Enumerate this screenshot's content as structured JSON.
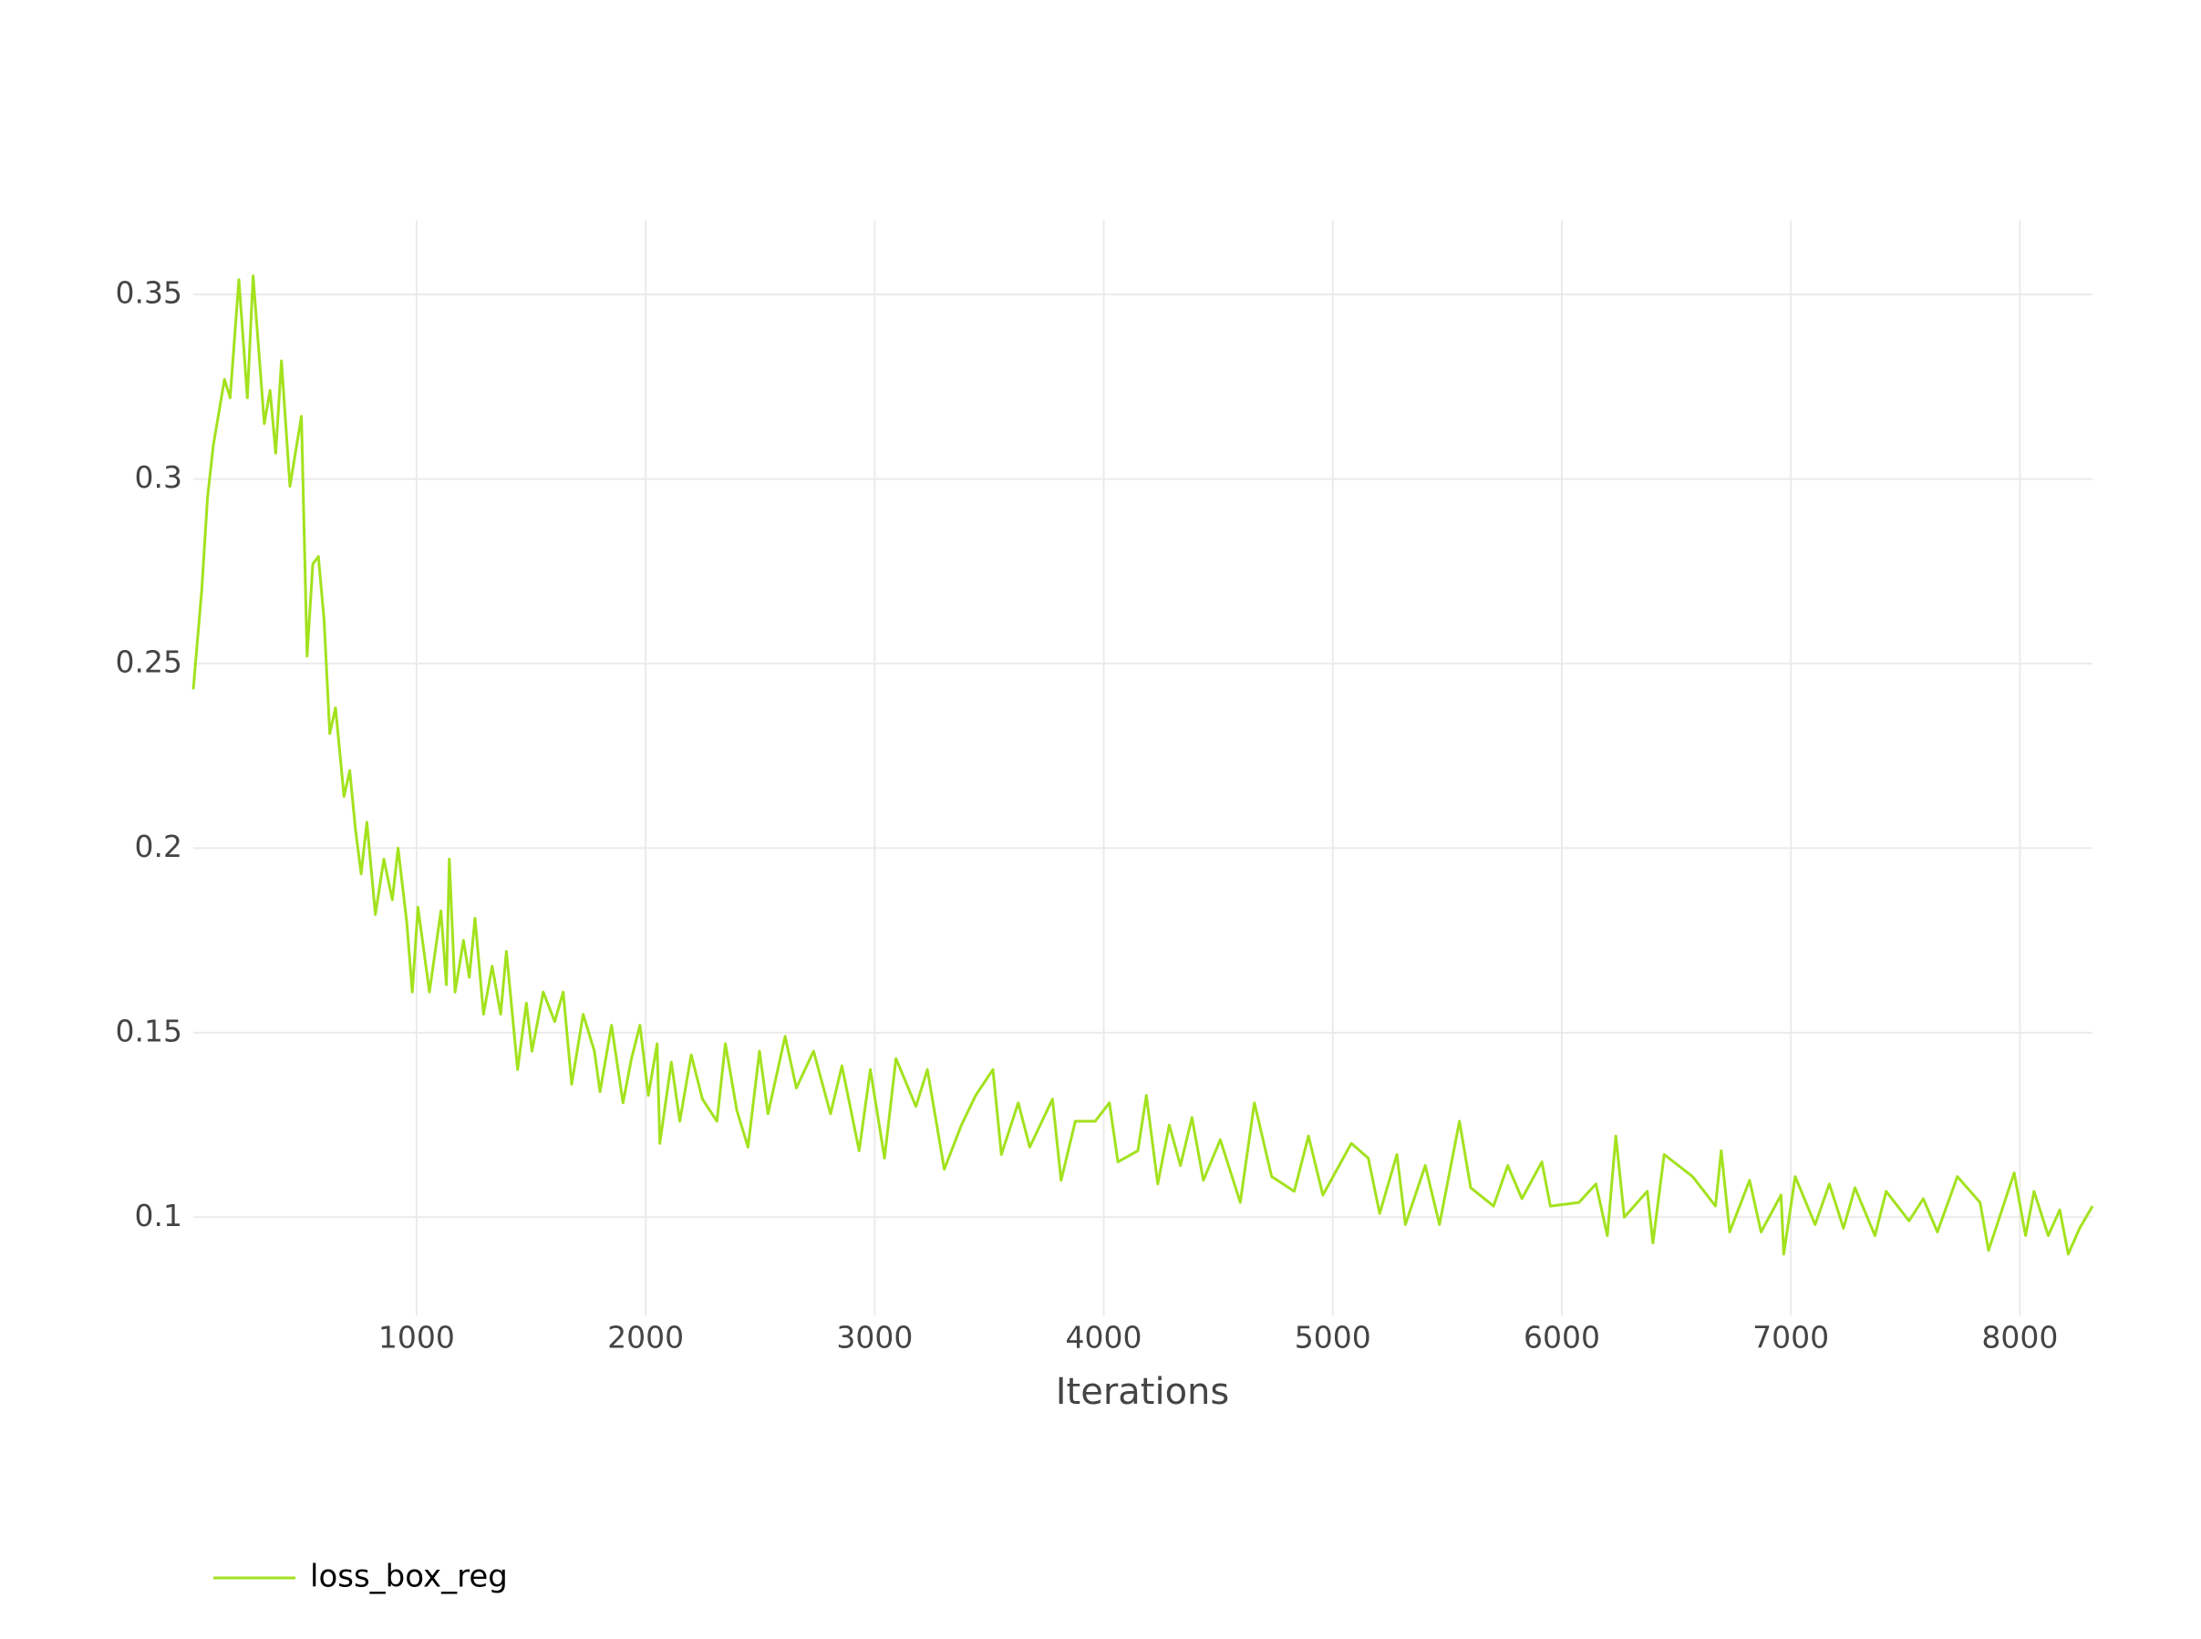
{
  "chart_data": {
    "type": "line",
    "x_label": "Iterations",
    "x": [
      25,
      62,
      87,
      112,
      161,
      186,
      224,
      261,
      286,
      335,
      360,
      385,
      410,
      447,
      497,
      522,
      547,
      571,
      596,
      621,
      646,
      683,
      708,
      733,
      758,
      783,
      820,
      857,
      894,
      919,
      957,
      981,
      1006,
      1056,
      1106,
      1130,
      1143,
      1168,
      1205,
      1230,
      1255,
      1292,
      1330,
      1367,
      1392,
      1441,
      1479,
      1504,
      1553,
      1603,
      1640,
      1677,
      1727,
      1776,
      1801,
      1851,
      1901,
      1938,
      1975,
      2012,
      2050,
      2062,
      2112,
      2149,
      2199,
      2248,
      2311,
      2348,
      2398,
      2447,
      2497,
      2534,
      2609,
      2658,
      2733,
      2807,
      2857,
      2932,
      2981,
      3043,
      3093,
      3180,
      3230,
      3304,
      3379,
      3441,
      3516,
      3553,
      3627,
      3677,
      3776,
      3814,
      3876,
      3963,
      4025,
      4062,
      4149,
      4186,
      4236,
      4286,
      4335,
      4385,
      4435,
      4509,
      4596,
      4658,
      4733,
      4832,
      4894,
      4957,
      5081,
      5155,
      5205,
      5280,
      5317,
      5404,
      5466,
      5553,
      5602,
      5702,
      5764,
      5826,
      5913,
      5950,
      6075,
      6149,
      6199,
      6236,
      6273,
      6373,
      6398,
      6447,
      6571,
      6671,
      6696,
      6733,
      6820,
      6870,
      6957,
      6969,
      7019,
      7106,
      7168,
      7230,
      7280,
      7367,
      7416,
      7516,
      7578,
      7640,
      7727,
      7826,
      7863,
      7975,
      8025,
      8062,
      8124,
      8174,
      8211,
      8261,
      8317
    ],
    "series": [
      {
        "name": "loss_box_reg",
        "color": "#a3e21e",
        "values": [
          0.243,
          0.27,
          0.295,
          0.309,
          0.327,
          0.322,
          0.354,
          0.322,
          0.355,
          0.315,
          0.324,
          0.307,
          0.332,
          0.298,
          0.317,
          0.252,
          0.277,
          0.279,
          0.262,
          0.231,
          0.238,
          0.214,
          0.221,
          0.205,
          0.193,
          0.207,
          0.182,
          0.197,
          0.186,
          0.2,
          0.18,
          0.161,
          0.184,
          0.161,
          0.183,
          0.163,
          0.197,
          0.161,
          0.175,
          0.165,
          0.181,
          0.155,
          0.168,
          0.155,
          0.172,
          0.14,
          0.158,
          0.145,
          0.161,
          0.153,
          0.161,
          0.136,
          0.155,
          0.145,
          0.134,
          0.152,
          0.131,
          0.143,
          0.152,
          0.133,
          0.147,
          0.12,
          0.142,
          0.126,
          0.144,
          0.132,
          0.126,
          0.147,
          0.129,
          0.119,
          0.145,
          0.128,
          0.149,
          0.135,
          0.145,
          0.128,
          0.141,
          0.118,
          0.14,
          0.116,
          0.143,
          0.13,
          0.14,
          0.113,
          0.125,
          0.133,
          0.14,
          0.117,
          0.131,
          0.119,
          0.132,
          0.11,
          0.126,
          0.126,
          0.131,
          0.115,
          0.118,
          0.133,
          0.109,
          0.125,
          0.114,
          0.127,
          0.11,
          0.121,
          0.104,
          0.131,
          0.111,
          0.107,
          0.122,
          0.106,
          0.12,
          0.116,
          0.101,
          0.117,
          0.098,
          0.114,
          0.098,
          0.126,
          0.108,
          0.103,
          0.114,
          0.105,
          0.115,
          0.103,
          0.104,
          0.109,
          0.095,
          0.122,
          0.1,
          0.107,
          0.093,
          0.117,
          0.111,
          0.103,
          0.118,
          0.096,
          0.11,
          0.096,
          0.106,
          0.09,
          0.111,
          0.098,
          0.109,
          0.097,
          0.108,
          0.095,
          0.107,
          0.099,
          0.105,
          0.096,
          0.111,
          0.104,
          0.091,
          0.112,
          0.095,
          0.107,
          0.095,
          0.102,
          0.09,
          0.097,
          0.103
        ]
      }
    ],
    "xlim": [
      25,
      8317
    ],
    "xticks": [
      1000,
      2000,
      3000,
      4000,
      5000,
      6000,
      7000,
      8000
    ],
    "ylim": [
      0.0734,
      0.37
    ],
    "yticks": [
      0.1,
      0.15,
      0.2,
      0.25,
      0.3,
      0.35
    ],
    "grid": true,
    "legend": "bottom-left"
  }
}
